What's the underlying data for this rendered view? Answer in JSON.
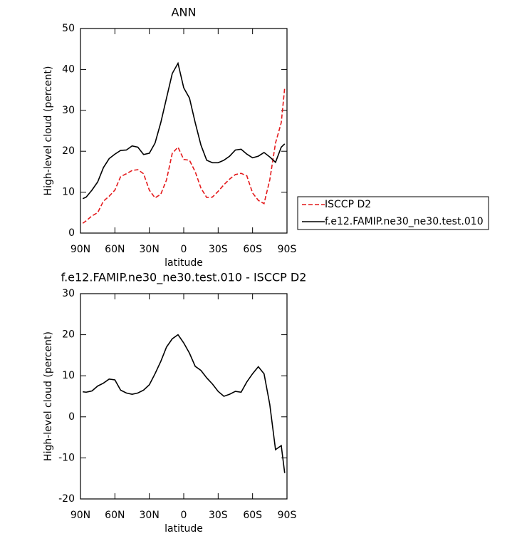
{
  "chart_data": [
    {
      "type": "line",
      "title": "ANN",
      "xlabel": "latitude",
      "ylabel": "High-level cloud (percent)",
      "x": [
        88,
        85,
        80,
        75,
        70,
        65,
        60,
        55,
        50,
        45,
        40,
        35,
        30,
        25,
        20,
        15,
        10,
        5,
        0,
        -5,
        -10,
        -15,
        -20,
        -25,
        -30,
        -35,
        -40,
        -45,
        -50,
        -55,
        -60,
        -65,
        -70,
        -75,
        -80,
        -85,
        -88
      ],
      "xlim": [
        90,
        -90
      ],
      "xticks": [
        {
          "value": 90,
          "label": "90N"
        },
        {
          "value": 60,
          "label": "60N"
        },
        {
          "value": 30,
          "label": "30N"
        },
        0,
        {
          "value": -30,
          "label": "30S"
        },
        {
          "value": -60,
          "label": "60S"
        },
        {
          "value": -90,
          "label": "90S"
        }
      ],
      "ylim": [
        0,
        50
      ],
      "yticks": [
        0,
        10,
        20,
        30,
        40,
        50
      ],
      "legend": "right",
      "series": [
        {
          "name": "ISCCP D2",
          "color": "#e41a1c",
          "line_style": "dashed",
          "values": [
            2.4,
            3,
            4.2,
            5,
            7.8,
            9,
            10.5,
            13.8,
            14.5,
            15.3,
            15.5,
            14.5,
            10.5,
            8.6,
            9.5,
            13,
            19.5,
            21,
            18,
            17.8,
            15,
            11,
            8.7,
            8.8,
            10.2,
            11.8,
            13.2,
            14.3,
            14.6,
            14,
            9.8,
            8,
            7.2,
            13,
            22,
            27,
            35.5
          ]
        },
        {
          "name": "f.e12.FAMIP.ne30_ne30.test.010",
          "color": "#000000",
          "line_style": "solid",
          "values": [
            8.4,
            8.8,
            10.5,
            12.5,
            16,
            18.2,
            19.3,
            20.2,
            20.3,
            21.3,
            21,
            19.2,
            19.5,
            22,
            27,
            33,
            39,
            41.5,
            35.5,
            33,
            27,
            21.5,
            17.8,
            17.2,
            17.2,
            17.8,
            18.8,
            20.3,
            20.5,
            19.3,
            18.4,
            18.8,
            19.7,
            18.6,
            17.3,
            21,
            21.8
          ]
        }
      ]
    },
    {
      "type": "line",
      "title": "f.e12.FAMIP.ne30_ne30.test.010 - ISCCP D2",
      "xlabel": "latitude",
      "ylabel": "High-level cloud (percent)",
      "x": [
        88,
        85,
        80,
        75,
        70,
        65,
        60,
        55,
        50,
        45,
        40,
        35,
        30,
        25,
        20,
        15,
        10,
        5,
        0,
        -5,
        -10,
        -15,
        -20,
        -25,
        -30,
        -35,
        -40,
        -45,
        -50,
        -55,
        -60,
        -65,
        -70,
        -75,
        -80,
        -85,
        -88
      ],
      "xlim": [
        90,
        -90
      ],
      "xticks": [
        {
          "value": 90,
          "label": "90N"
        },
        {
          "value": 60,
          "label": "60N"
        },
        {
          "value": 30,
          "label": "30N"
        },
        0,
        {
          "value": -30,
          "label": "30S"
        },
        {
          "value": -60,
          "label": "60S"
        },
        {
          "value": -90,
          "label": "90S"
        }
      ],
      "ylim": [
        -20,
        30
      ],
      "yticks": [
        -20,
        -10,
        0,
        10,
        20,
        30
      ],
      "series": [
        {
          "color": "#000000",
          "line_style": "solid",
          "values": [
            6.1,
            6,
            6.3,
            7.5,
            8.2,
            9.2,
            9,
            6.5,
            5.8,
            5.5,
            5.8,
            6.5,
            7.8,
            10.5,
            13.5,
            17,
            19,
            20,
            18,
            15.5,
            12.3,
            11.3,
            9.5,
            8,
            6.2,
            5,
            5.5,
            6.2,
            6,
            8.5,
            10.5,
            12.2,
            10.5,
            3,
            -8,
            -7,
            -13.7
          ]
        }
      ]
    }
  ]
}
